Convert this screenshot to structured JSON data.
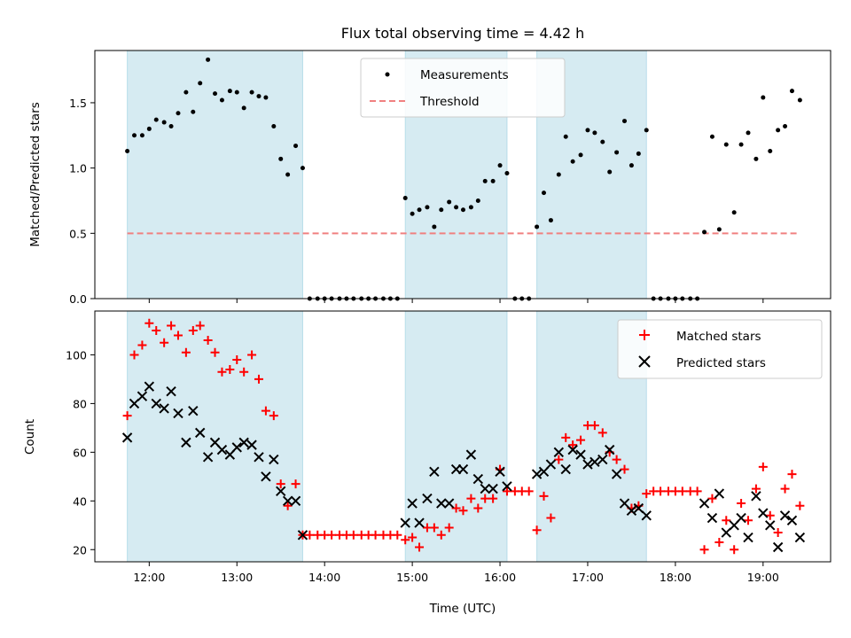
{
  "chart_data": [
    {
      "type": "scatter",
      "title": "Flux total observing time = 4.42 h",
      "ylabel": "Matched/Predicted stars",
      "xlim": [
        11.38,
        19.77
      ],
      "ylim": [
        0,
        1.9
      ],
      "yticks": [
        0.0,
        0.5,
        1.0,
        1.5
      ],
      "ytick_labels": [
        "0.0",
        "0.5",
        "1.0",
        "1.5"
      ],
      "grid": false,
      "legend_position": "upper center",
      "shaded_intervals": [
        [
          11.75,
          13.75
        ],
        [
          14.92,
          16.08
        ],
        [
          16.42,
          17.67
        ]
      ],
      "shading_color": "#add8e6",
      "threshold": {
        "name": "Threshold",
        "value": 0.5,
        "x_range": [
          11.75,
          19.42
        ],
        "color": "#f08080"
      },
      "series": [
        {
          "name": "Measurements",
          "color": "#000000",
          "marker": "dot",
          "points": [
            [
              11.75,
              1.13
            ],
            [
              11.83,
              1.25
            ],
            [
              11.92,
              1.25
            ],
            [
              12.0,
              1.3
            ],
            [
              12.08,
              1.37
            ],
            [
              12.17,
              1.35
            ],
            [
              12.25,
              1.32
            ],
            [
              12.33,
              1.42
            ],
            [
              12.42,
              1.58
            ],
            [
              12.5,
              1.43
            ],
            [
              12.58,
              1.65
            ],
            [
              12.67,
              1.83
            ],
            [
              12.75,
              1.57
            ],
            [
              12.83,
              1.52
            ],
            [
              12.92,
              1.59
            ],
            [
              13.0,
              1.58
            ],
            [
              13.08,
              1.46
            ],
            [
              13.17,
              1.58
            ],
            [
              13.25,
              1.55
            ],
            [
              13.33,
              1.54
            ],
            [
              13.42,
              1.32
            ],
            [
              13.5,
              1.07
            ],
            [
              13.58,
              0.95
            ],
            [
              13.67,
              1.17
            ],
            [
              13.75,
              1.0
            ],
            [
              13.83,
              0.0
            ],
            [
              13.92,
              0.0
            ],
            [
              14.0,
              0.0
            ],
            [
              14.08,
              0.0
            ],
            [
              14.17,
              0.0
            ],
            [
              14.25,
              0.0
            ],
            [
              14.33,
              0.0
            ],
            [
              14.42,
              0.0
            ],
            [
              14.5,
              0.0
            ],
            [
              14.58,
              0.0
            ],
            [
              14.67,
              0.0
            ],
            [
              14.75,
              0.0
            ],
            [
              14.83,
              0.0
            ],
            [
              14.92,
              0.77
            ],
            [
              15.0,
              0.65
            ],
            [
              15.08,
              0.68
            ],
            [
              15.17,
              0.7
            ],
            [
              15.25,
              0.55
            ],
            [
              15.33,
              0.68
            ],
            [
              15.42,
              0.74
            ],
            [
              15.5,
              0.7
            ],
            [
              15.58,
              0.68
            ],
            [
              15.67,
              0.7
            ],
            [
              15.75,
              0.75
            ],
            [
              15.83,
              0.9
            ],
            [
              15.92,
              0.9
            ],
            [
              16.0,
              1.02
            ],
            [
              16.08,
              0.96
            ],
            [
              16.17,
              0.0
            ],
            [
              16.25,
              0.0
            ],
            [
              16.33,
              0.0
            ],
            [
              16.42,
              0.55
            ],
            [
              16.5,
              0.81
            ],
            [
              16.58,
              0.6
            ],
            [
              16.67,
              0.95
            ],
            [
              16.75,
              1.24
            ],
            [
              16.83,
              1.05
            ],
            [
              16.92,
              1.1
            ],
            [
              17.0,
              1.29
            ],
            [
              17.08,
              1.27
            ],
            [
              17.17,
              1.2
            ],
            [
              17.25,
              0.97
            ],
            [
              17.33,
              1.12
            ],
            [
              17.42,
              1.36
            ],
            [
              17.5,
              1.02
            ],
            [
              17.58,
              1.11
            ],
            [
              17.67,
              1.29
            ],
            [
              17.75,
              0.0
            ],
            [
              17.83,
              0.0
            ],
            [
              17.92,
              0.0
            ],
            [
              18.0,
              0.0
            ],
            [
              18.08,
              0.0
            ],
            [
              18.17,
              0.0
            ],
            [
              18.25,
              0.0
            ],
            [
              18.33,
              0.51
            ],
            [
              18.42,
              1.24
            ],
            [
              18.5,
              0.53
            ],
            [
              18.58,
              1.18
            ],
            [
              18.67,
              0.66
            ],
            [
              18.75,
              1.18
            ],
            [
              18.83,
              1.27
            ],
            [
              18.92,
              1.07
            ],
            [
              19.0,
              1.54
            ],
            [
              19.08,
              1.13
            ],
            [
              19.17,
              1.29
            ],
            [
              19.25,
              1.32
            ],
            [
              19.33,
              1.59
            ],
            [
              19.42,
              1.52
            ]
          ]
        }
      ]
    },
    {
      "type": "scatter",
      "xlabel": "Time (UTC)",
      "ylabel": "Count",
      "xlim": [
        11.38,
        19.77
      ],
      "ylim": [
        15,
        118
      ],
      "xticks": [
        12,
        13,
        14,
        15,
        16,
        17,
        18,
        19
      ],
      "xtick_labels": [
        "12:00",
        "13:00",
        "14:00",
        "15:00",
        "16:00",
        "17:00",
        "18:00",
        "19:00"
      ],
      "yticks": [
        20,
        40,
        60,
        80,
        100
      ],
      "ytick_labels": [
        "20",
        "40",
        "60",
        "80",
        "100"
      ],
      "grid": false,
      "legend_position": "upper right",
      "shaded_intervals": [
        [
          11.75,
          13.75
        ],
        [
          14.92,
          16.08
        ],
        [
          16.42,
          17.67
        ]
      ],
      "shading_color": "#add8e6",
      "series": [
        {
          "name": "Matched stars",
          "color": "#ff0000",
          "marker": "plus",
          "points": [
            [
              11.75,
              75
            ],
            [
              11.83,
              100
            ],
            [
              11.92,
              104
            ],
            [
              12.0,
              113
            ],
            [
              12.08,
              110
            ],
            [
              12.17,
              105
            ],
            [
              12.25,
              112
            ],
            [
              12.33,
              108
            ],
            [
              12.42,
              101
            ],
            [
              12.5,
              110
            ],
            [
              12.58,
              112
            ],
            [
              12.67,
              106
            ],
            [
              12.75,
              101
            ],
            [
              12.83,
              93
            ],
            [
              12.92,
              94
            ],
            [
              13.0,
              98
            ],
            [
              13.08,
              93
            ],
            [
              13.17,
              100
            ],
            [
              13.25,
              90
            ],
            [
              13.33,
              77
            ],
            [
              13.42,
              75
            ],
            [
              13.5,
              47
            ],
            [
              13.58,
              38
            ],
            [
              13.67,
              47
            ],
            [
              13.75,
              26
            ],
            [
              13.83,
              26
            ],
            [
              13.92,
              26
            ],
            [
              14.0,
              26
            ],
            [
              14.08,
              26
            ],
            [
              14.17,
              26
            ],
            [
              14.25,
              26
            ],
            [
              14.33,
              26
            ],
            [
              14.42,
              26
            ],
            [
              14.5,
              26
            ],
            [
              14.58,
              26
            ],
            [
              14.67,
              26
            ],
            [
              14.75,
              26
            ],
            [
              14.83,
              26
            ],
            [
              14.92,
              24
            ],
            [
              15.0,
              25
            ],
            [
              15.08,
              21
            ],
            [
              15.17,
              29
            ],
            [
              15.25,
              29
            ],
            [
              15.33,
              26
            ],
            [
              15.42,
              29
            ],
            [
              15.5,
              37
            ],
            [
              15.58,
              36
            ],
            [
              15.67,
              41
            ],
            [
              15.75,
              37
            ],
            [
              15.83,
              41
            ],
            [
              15.92,
              41
            ],
            [
              16.0,
              53
            ],
            [
              16.08,
              44
            ],
            [
              16.17,
              44
            ],
            [
              16.25,
              44
            ],
            [
              16.33,
              44
            ],
            [
              16.42,
              28
            ],
            [
              16.5,
              42
            ],
            [
              16.58,
              33
            ],
            [
              16.67,
              57
            ],
            [
              16.75,
              66
            ],
            [
              16.83,
              63
            ],
            [
              16.92,
              65
            ],
            [
              17.0,
              71
            ],
            [
              17.08,
              71
            ],
            [
              17.17,
              68
            ],
            [
              17.25,
              60
            ],
            [
              17.33,
              57
            ],
            [
              17.42,
              53
            ],
            [
              17.5,
              37
            ],
            [
              17.58,
              38
            ],
            [
              17.67,
              43
            ],
            [
              17.75,
              44
            ],
            [
              17.83,
              44
            ],
            [
              17.92,
              44
            ],
            [
              18.0,
              44
            ],
            [
              18.08,
              44
            ],
            [
              18.17,
              44
            ],
            [
              18.25,
              44
            ],
            [
              18.33,
              20
            ],
            [
              18.42,
              41
            ],
            [
              18.5,
              23
            ],
            [
              18.58,
              32
            ],
            [
              18.67,
              20
            ],
            [
              18.75,
              39
            ],
            [
              18.83,
              32
            ],
            [
              18.92,
              45
            ],
            [
              19.0,
              54
            ],
            [
              19.08,
              34
            ],
            [
              19.17,
              27
            ],
            [
              19.25,
              45
            ],
            [
              19.33,
              51
            ],
            [
              19.42,
              38
            ]
          ]
        },
        {
          "name": "Predicted stars",
          "color": "#000000",
          "marker": "x",
          "points": [
            [
              11.75,
              66
            ],
            [
              11.83,
              80
            ],
            [
              11.92,
              83
            ],
            [
              12.0,
              87
            ],
            [
              12.08,
              80
            ],
            [
              12.17,
              78
            ],
            [
              12.25,
              85
            ],
            [
              12.33,
              76
            ],
            [
              12.42,
              64
            ],
            [
              12.5,
              77
            ],
            [
              12.58,
              68
            ],
            [
              12.67,
              58
            ],
            [
              12.75,
              64
            ],
            [
              12.83,
              61
            ],
            [
              12.92,
              59
            ],
            [
              13.0,
              62
            ],
            [
              13.08,
              64
            ],
            [
              13.17,
              63
            ],
            [
              13.25,
              58
            ],
            [
              13.33,
              50
            ],
            [
              13.42,
              57
            ],
            [
              13.5,
              44
            ],
            [
              13.58,
              40
            ],
            [
              13.67,
              40
            ],
            [
              13.75,
              26
            ],
            [
              14.92,
              31
            ],
            [
              15.0,
              39
            ],
            [
              15.08,
              31
            ],
            [
              15.17,
              41
            ],
            [
              15.25,
              52
            ],
            [
              15.33,
              39
            ],
            [
              15.42,
              39
            ],
            [
              15.5,
              53
            ],
            [
              15.58,
              53
            ],
            [
              15.67,
              59
            ],
            [
              15.75,
              49
            ],
            [
              15.83,
              45
            ],
            [
              15.92,
              45
            ],
            [
              16.0,
              52
            ],
            [
              16.08,
              46
            ],
            [
              16.42,
              51
            ],
            [
              16.5,
              52
            ],
            [
              16.58,
              55
            ],
            [
              16.67,
              60
            ],
            [
              16.75,
              53
            ],
            [
              16.83,
              61
            ],
            [
              16.92,
              59
            ],
            [
              17.0,
              55
            ],
            [
              17.08,
              56
            ],
            [
              17.17,
              57
            ],
            [
              17.25,
              61
            ],
            [
              17.33,
              51
            ],
            [
              17.42,
              39
            ],
            [
              17.5,
              36
            ],
            [
              17.58,
              37
            ],
            [
              17.67,
              34
            ],
            [
              18.33,
              39
            ],
            [
              18.42,
              33
            ],
            [
              18.5,
              43
            ],
            [
              18.58,
              27
            ],
            [
              18.67,
              30
            ],
            [
              18.75,
              33
            ],
            [
              18.83,
              25
            ],
            [
              18.92,
              42
            ],
            [
              19.0,
              35
            ],
            [
              19.08,
              30
            ],
            [
              19.17,
              21
            ],
            [
              19.25,
              34
            ],
            [
              19.33,
              32
            ],
            [
              19.42,
              25
            ]
          ]
        }
      ]
    }
  ]
}
